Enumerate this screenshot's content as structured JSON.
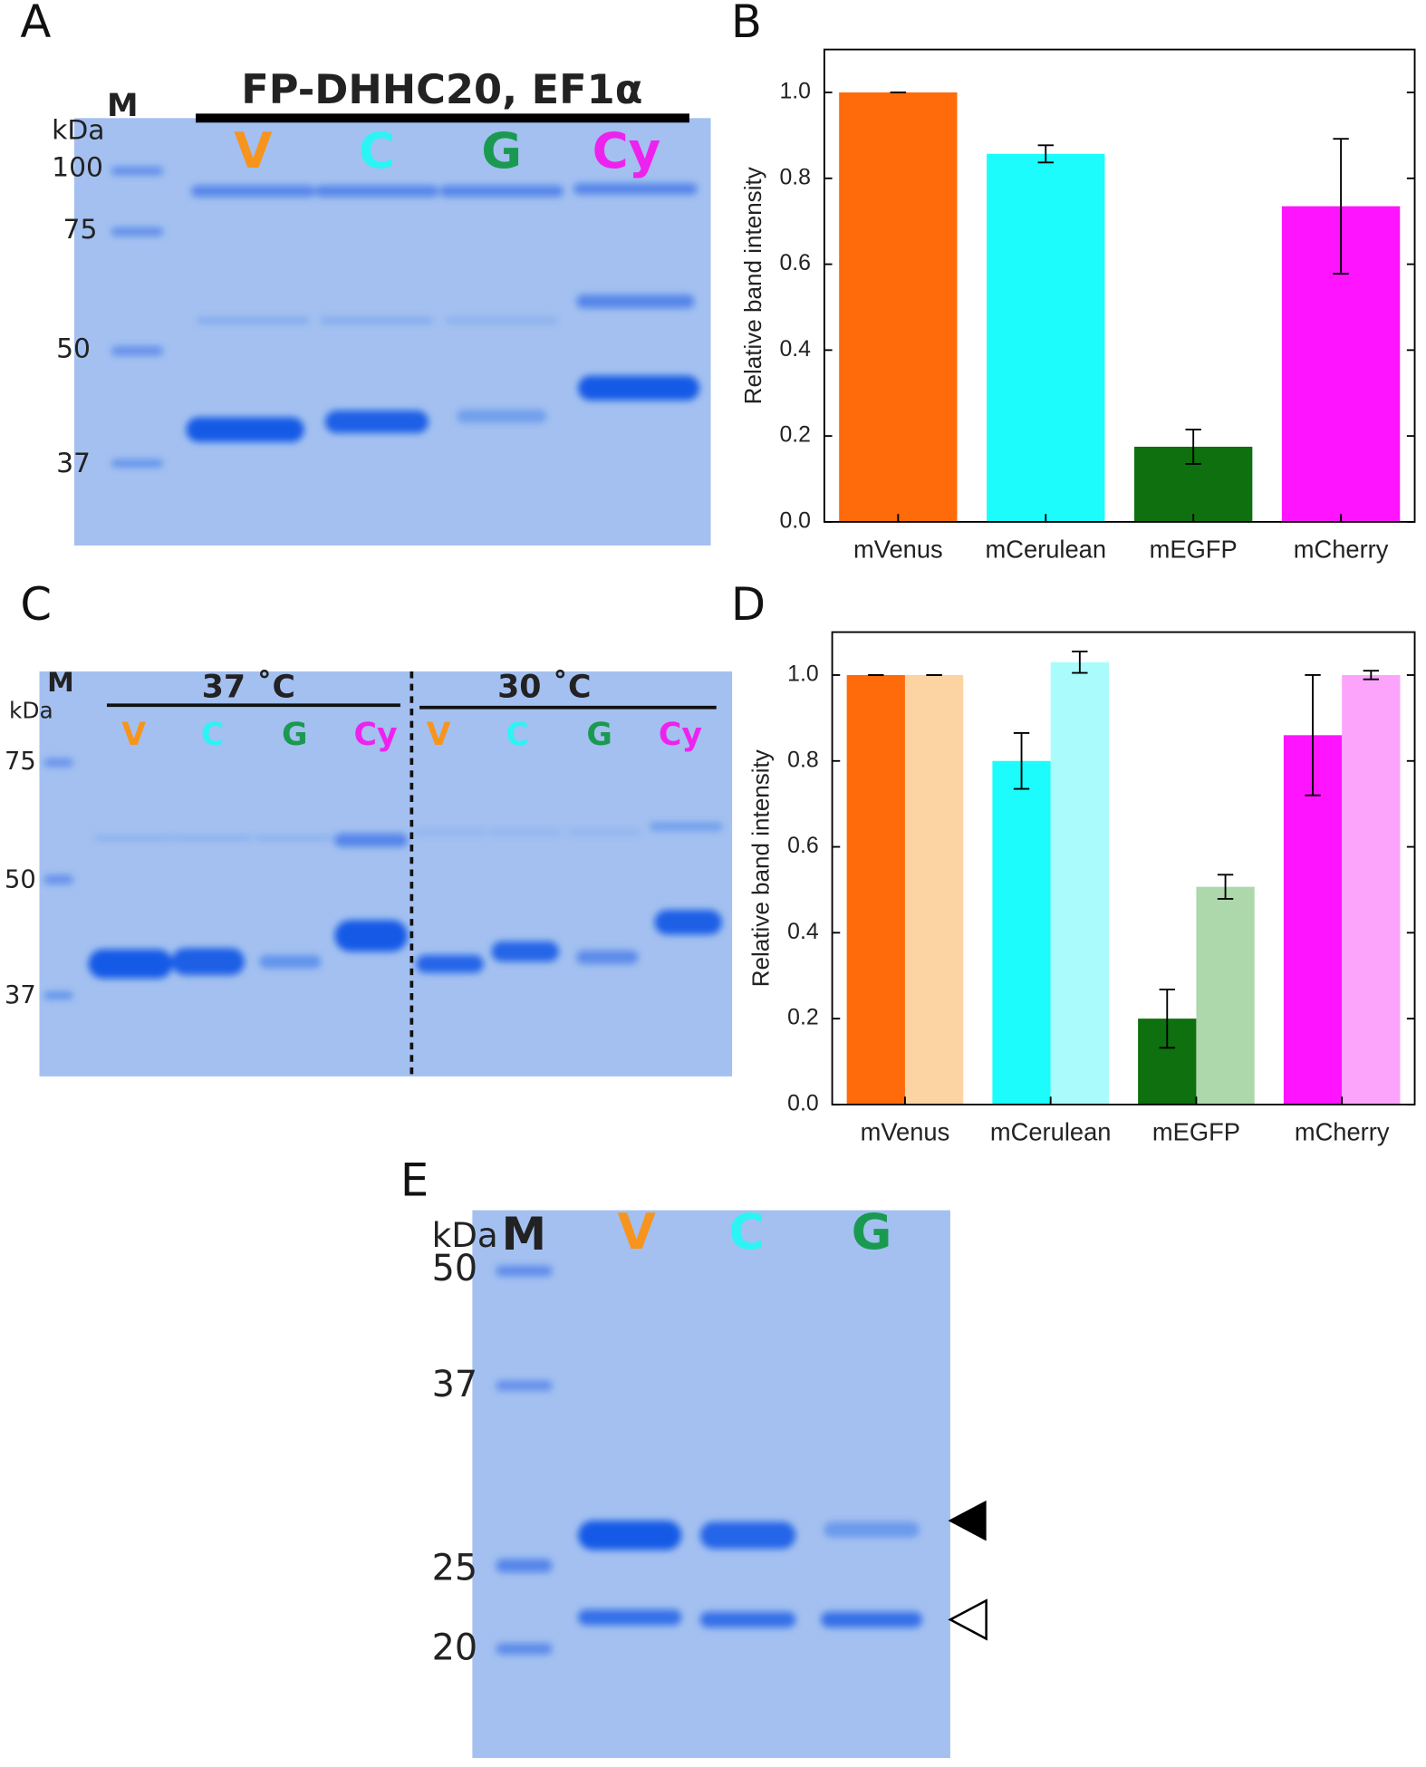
{
  "panels": {
    "A": {
      "letter": "A",
      "marker": "M",
      "unit": "kDa",
      "mw": [
        100,
        75,
        50,
        37
      ],
      "title": "FP-DHHC20, EF1α",
      "lanes": [
        "V",
        "C",
        "G",
        "Cy"
      ]
    },
    "B": {
      "letter": "B"
    },
    "C": {
      "letter": "C",
      "marker": "M",
      "unit": "kDa",
      "mw": [
        75,
        50,
        37
      ],
      "temps": [
        "37 ˚C",
        "30 ˚C"
      ],
      "lanes": [
        "V",
        "C",
        "G",
        "Cy",
        "V",
        "C",
        "G",
        "Cy"
      ]
    },
    "D": {
      "letter": "D"
    },
    "E": {
      "letter": "E",
      "unit": "kDa",
      "marker": "M",
      "mw": [
        50,
        37,
        25,
        20
      ],
      "lanes": [
        "V",
        "C",
        "G"
      ]
    }
  },
  "chart_data": [
    {
      "type": "bar",
      "y_label": "Relative band intensity",
      "categories": [
        "mVenus",
        "mCerulean",
        "mEGFP",
        "mCherry"
      ],
      "series": [
        {
          "colors": [
            "#ff6a0a",
            "#1cfcfc",
            "#0e700e",
            "#ff14ff"
          ],
          "values": [
            1.0,
            0.857,
            0.175,
            0.735
          ],
          "errors": [
            0,
            0.02,
            0.04,
            0.157
          ]
        }
      ],
      "ylim": [
        0,
        1.1
      ],
      "yticks": [
        {
          "value": 0,
          "label": "0.0"
        },
        {
          "value": 0.2,
          "label": "0.2"
        },
        {
          "value": 0.4,
          "label": "0.4"
        },
        {
          "value": 0.6,
          "label": "0.6"
        },
        {
          "value": 0.8,
          "label": "0.8"
        },
        {
          "value": 1,
          "label": "1.0"
        }
      ]
    },
    {
      "type": "bar",
      "y_label": "Relative band intensity",
      "categories": [
        "mVenus",
        "mCerulean",
        "mEGFP",
        "mCherry"
      ],
      "series": [
        {
          "colors": [
            "#ff6a0a",
            "#1cfcfc",
            "#0e700e",
            "#ff14ff"
          ],
          "values": [
            1.0,
            0.8,
            0.2,
            0.86
          ],
          "errors": [
            0,
            0.065,
            0.068,
            0.14
          ]
        },
        {
          "colors": [
            "#fcd4a4",
            "#aafcfc",
            "#acd8ac",
            "#fca4fc"
          ],
          "values": [
            1.0,
            1.03,
            0.507,
            1.0
          ],
          "errors": [
            0,
            0.025,
            0.028,
            0.01
          ]
        }
      ],
      "ylim": [
        0,
        1.1
      ],
      "yticks": [
        {
          "value": 0,
          "label": "0.0"
        },
        {
          "value": 0.2,
          "label": "0.2"
        },
        {
          "value": 0.4,
          "label": "0.4"
        },
        {
          "value": 0.6,
          "label": "0.6"
        },
        {
          "value": 0.8,
          "label": "0.8"
        },
        {
          "value": 1,
          "label": "1.0"
        }
      ]
    }
  ]
}
